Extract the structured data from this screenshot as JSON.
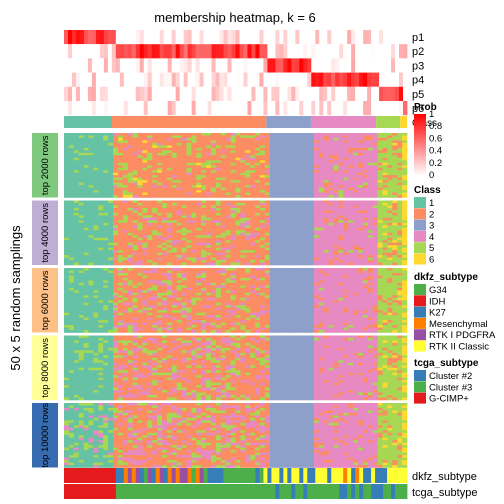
{
  "chart_data": {
    "type": "heatmap",
    "title": "membership heatmap, k = 6",
    "ylabel": "50 x 5 random samplings",
    "membership_rows": [
      "p1",
      "p2",
      "p3",
      "p4",
      "p5",
      "p6"
    ],
    "class_row_label": "Class",
    "row_groups": [
      "top 2000 rows",
      "top 4000 rows",
      "top 6000 rows",
      "top 8000 rows",
      "top 10000 rows"
    ],
    "bottom_tracks": [
      "dkfz_subtype",
      "tcga_subtype"
    ],
    "consensus_class_by_column_group": [
      {
        "class": "1",
        "share": 0.14
      },
      {
        "class": "2",
        "share": 0.45
      },
      {
        "class": "3",
        "share": 0.13
      },
      {
        "class": "4",
        "share": 0.19
      },
      {
        "class": "5",
        "share": 0.07
      },
      {
        "class": "6",
        "share": 0.02
      }
    ],
    "legends": {
      "prob": {
        "title": "Prob",
        "ticks": [
          "1",
          "0.8",
          "0.6",
          "0.4",
          "0.2",
          "0"
        ],
        "colors": [
          "#ffffff",
          "#ff0000"
        ]
      },
      "class": {
        "title": "Class",
        "items": [
          {
            "label": "1",
            "color": "#66c2a5"
          },
          {
            "label": "2",
            "color": "#fc8d62"
          },
          {
            "label": "3",
            "color": "#8da0cb"
          },
          {
            "label": "4",
            "color": "#e78ac3"
          },
          {
            "label": "5",
            "color": "#a6d854"
          },
          {
            "label": "6",
            "color": "#ffd92f"
          }
        ]
      },
      "dkfz_subtype": {
        "title": "dkfz_subtype",
        "items": [
          {
            "label": "G34",
            "color": "#4daf4a"
          },
          {
            "label": "IDH",
            "color": "#e41a1c"
          },
          {
            "label": "K27",
            "color": "#377eb8"
          },
          {
            "label": "Mesenchymal",
            "color": "#ff7f00"
          },
          {
            "label": "RTK I PDGFRA",
            "color": "#984ea3"
          },
          {
            "label": "RTK II Classic",
            "color": "#ffff33"
          }
        ]
      },
      "tcga_subtype": {
        "title": "tcga_subtype",
        "items": [
          {
            "label": "Cluster #2",
            "color": "#377eb8"
          },
          {
            "label": "Cluster #3",
            "color": "#4daf4a"
          },
          {
            "label": "G-CIMP+",
            "color": "#e41a1c"
          }
        ]
      }
    }
  }
}
